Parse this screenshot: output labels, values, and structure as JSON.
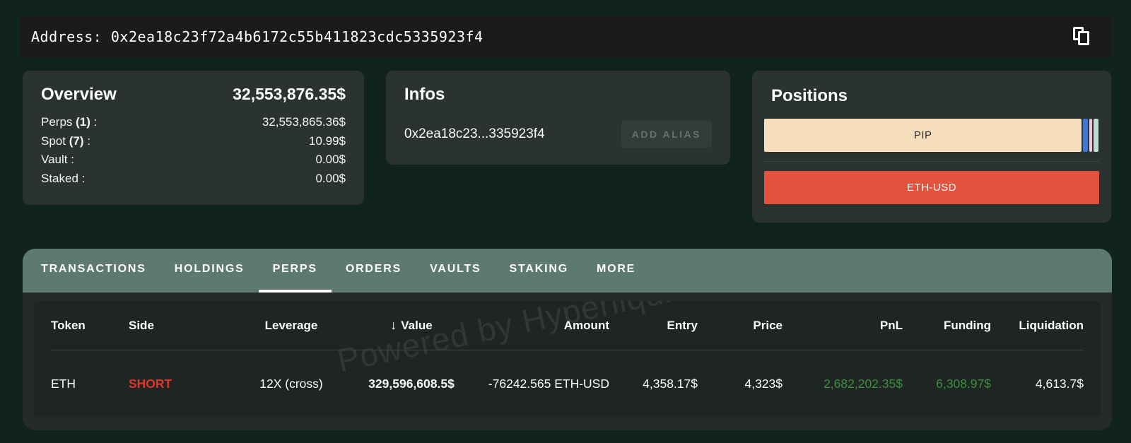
{
  "address_bar": {
    "label": "Address: ",
    "value": "0x2ea18c23f72a4b6172c55b411823cdc5335923f4"
  },
  "overview": {
    "title": "Overview",
    "total": "32,553,876.35$",
    "rows": [
      {
        "label_pre": "Perps ",
        "count": "(1)",
        "label_post": " :",
        "value": "32,553,865.36$"
      },
      {
        "label_pre": "Spot ",
        "count": "(7)",
        "label_post": " :",
        "value": "10.99$"
      },
      {
        "label_pre": "Vault ",
        "count": "",
        "label_post": ":",
        "value": "0.00$"
      },
      {
        "label_pre": "Staked ",
        "count": "",
        "label_post": ":",
        "value": "0.00$"
      }
    ]
  },
  "infos": {
    "title": "Infos",
    "address_short": "0x2ea18c23...335923f4",
    "add_alias_label": "ADD ALIAS"
  },
  "positions": {
    "title": "Positions",
    "bars": [
      {
        "segments": [
          {
            "label": "PIP",
            "color": "#f6ddbc",
            "text_color": "#2e2e2e",
            "width": 94.8
          },
          {
            "label": "",
            "color": "#4377c9",
            "text_color": "#ffffff",
            "width": 1.3
          },
          {
            "label": "",
            "color": "#f2c6da",
            "text_color": "#2e2e2e",
            "width": 0.9
          },
          {
            "label": "",
            "color": "#bedccb",
            "text_color": "#2e2e2e",
            "width": 1.6
          }
        ]
      },
      {
        "segments": [
          {
            "label": "ETH-USD",
            "color": "#e2523d",
            "text_color": "#ffffff",
            "width": 100
          }
        ]
      }
    ]
  },
  "tabs": {
    "active": "PERPS",
    "items": [
      {
        "label": "TRANSACTIONS"
      },
      {
        "label": "HOLDINGS"
      },
      {
        "label": "PERPS"
      },
      {
        "label": "ORDERS"
      },
      {
        "label": "VAULTS"
      },
      {
        "label": "STAKING"
      },
      {
        "label": "MORE"
      }
    ]
  },
  "table": {
    "sort_icon": "↓",
    "sort_column": "Value",
    "sort_direction": "desc",
    "headers": [
      {
        "label": "Token"
      },
      {
        "label": "Side"
      },
      {
        "label": "Leverage"
      },
      {
        "label": "Value"
      },
      {
        "label": "Amount"
      },
      {
        "label": "Entry"
      },
      {
        "label": "Price"
      },
      {
        "label": "PnL"
      },
      {
        "label": "Funding"
      },
      {
        "label": "Liquidation"
      }
    ],
    "rows": [
      {
        "token": "ETH",
        "side": "SHORT",
        "leverage": "12X (cross)",
        "value": "329,596,608.5$",
        "amount": "-76242.565 ETH-USD",
        "entry": "4,358.17$",
        "price": "4,323$",
        "pnl": "2,682,202.35$",
        "funding": "6,308.97$",
        "liquidation": "4,613.7$"
      }
    ]
  },
  "watermark": "Powered by Hyperliquid",
  "colors": {
    "page_bg": "#10231e",
    "address_bar_bg": "#1b1b1b",
    "card_bg": "#2b3330",
    "panel_bg": "#262b29",
    "table_bg": "#1f2522",
    "tab_bar_bg": "#5e7971",
    "short_red": "#e0352b",
    "positive_green": "#3c8f3f",
    "bar_peach": "#f6ddbc",
    "bar_red": "#e2523d",
    "bar_blue": "#4377c9",
    "bar_pink": "#f2c6da",
    "bar_mint": "#bedccb"
  }
}
